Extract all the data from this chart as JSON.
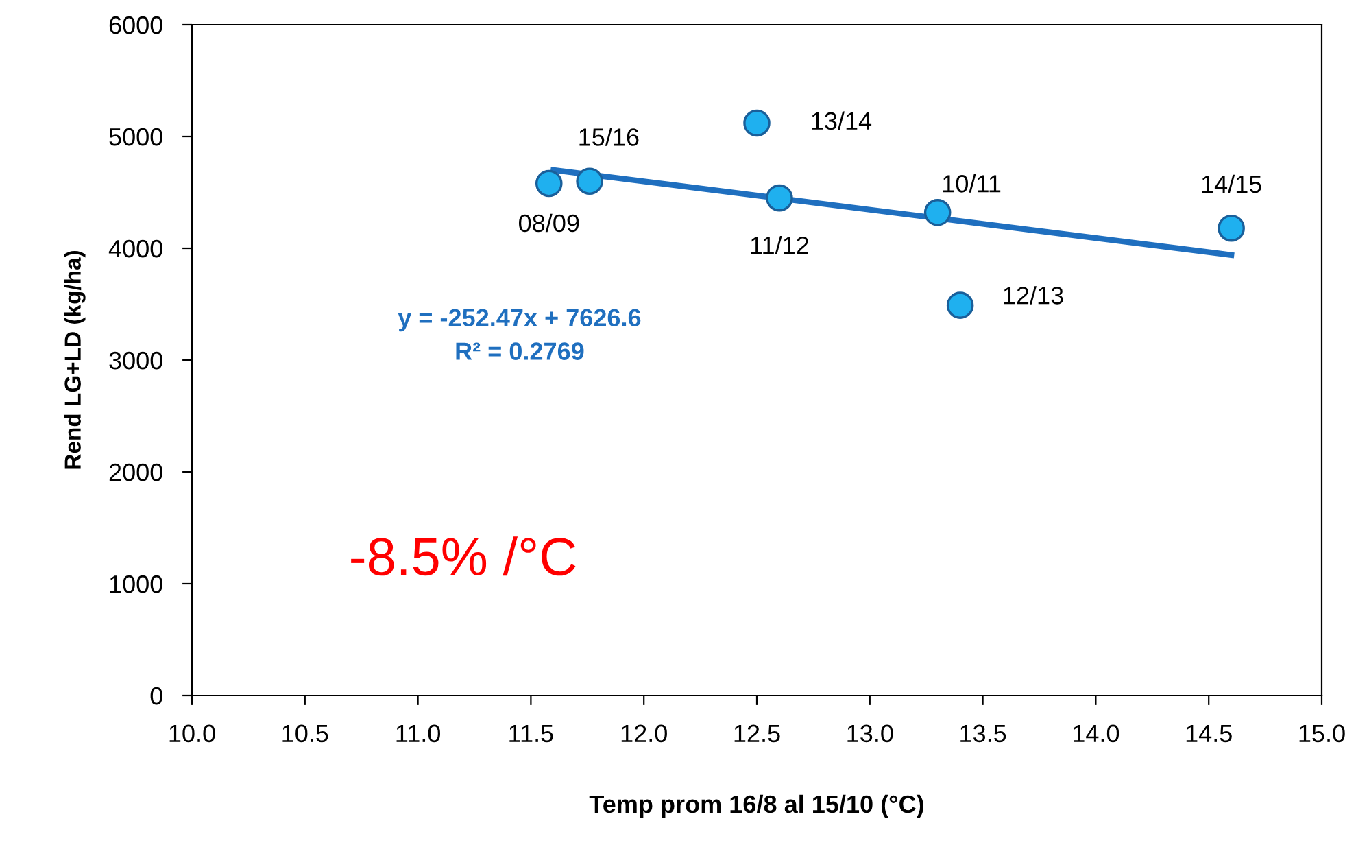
{
  "chart_data": {
    "type": "scatter",
    "xlabel": "Temp prom 16/8 al 15/10 (°C)",
    "ylabel": "Rend LG+LD (kg/ha)",
    "xlim": [
      10,
      15
    ],
    "ylim": [
      0,
      6000
    ],
    "xticks": [
      {
        "value": 10,
        "label": "10.0"
      },
      {
        "value": 10.5,
        "label": "10.5"
      },
      {
        "value": 11,
        "label": "11.0"
      },
      {
        "value": 11.5,
        "label": "11.5"
      },
      {
        "value": 12,
        "label": "12.0"
      },
      {
        "value": 12.5,
        "label": "12.5"
      },
      {
        "value": 13,
        "label": "13.0"
      },
      {
        "value": 13.5,
        "label": "13.5"
      },
      {
        "value": 14,
        "label": "14.0"
      },
      {
        "value": 14.5,
        "label": "14.5"
      },
      {
        "value": 15,
        "label": "15.0"
      }
    ],
    "yticks": [
      0,
      1000,
      2000,
      3000,
      4000,
      5000,
      6000
    ],
    "grid": false,
    "marker": "circle",
    "series": [
      {
        "color": "#1fb0ef",
        "x": [
          11.58,
          11.76,
          12.5,
          12.6,
          13.3,
          13.4,
          14.6
        ],
        "values": [
          4580,
          4600,
          5120,
          4450,
          4320,
          3490,
          4180
        ]
      },
      {
        "type": "line",
        "color": "#1f6fbf",
        "x": [
          11.6,
          14.6
        ],
        "values": [
          4700,
          3940
        ],
        "marker": "none",
        "line_style": "solid"
      }
    ],
    "annotations": [
      {
        "text": "08/09",
        "x": 11.58,
        "y": 4580
      },
      {
        "text": "15/16",
        "x": 11.76,
        "y": 4600
      },
      {
        "text": "13/14",
        "x": 12.5,
        "y": 5120
      },
      {
        "text": "11/12",
        "x": 12.6,
        "y": 4450
      },
      {
        "text": "10/11",
        "x": 13.3,
        "y": 4320
      },
      {
        "text": "12/13",
        "x": 13.4,
        "y": 3490
      },
      {
        "text": "14/15",
        "x": 14.6,
        "y": 4180
      },
      "y = -252.47x + 7626.6",
      "R² = 0.2769",
      "-8.5% /°C"
    ]
  }
}
